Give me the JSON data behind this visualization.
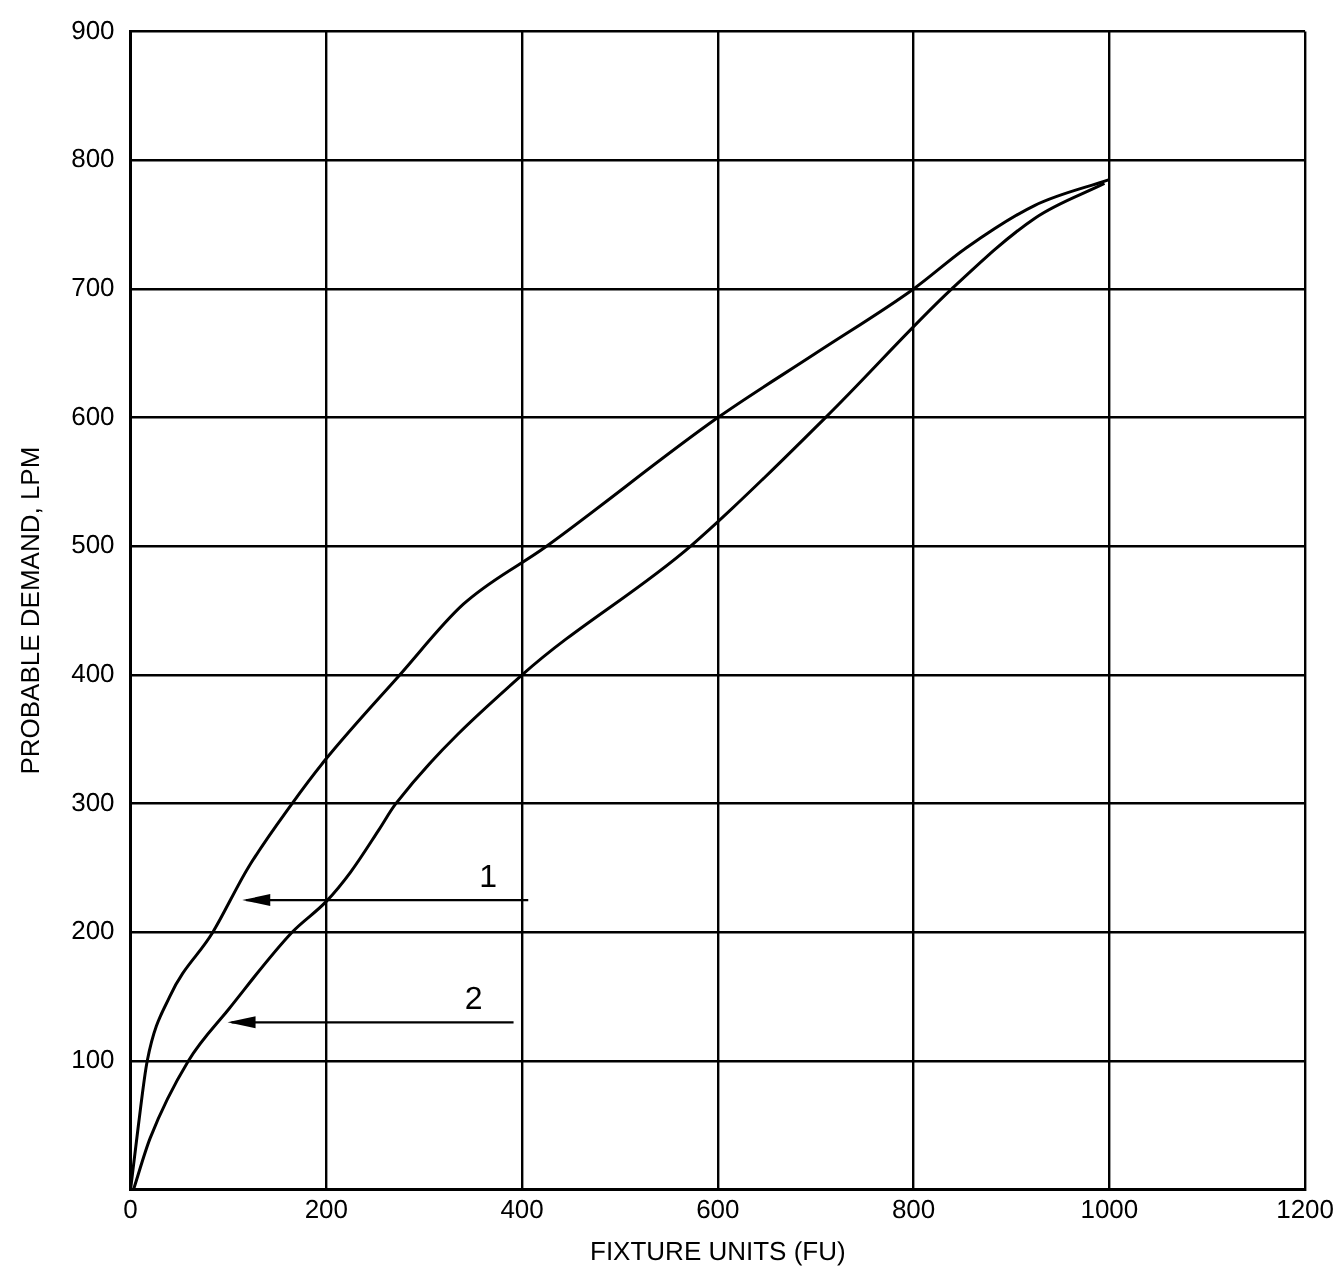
{
  "chart_data": {
    "type": "line",
    "xlabel": "FIXTURE UNITS (FU)",
    "ylabel": "PROBABLE DEMAND, LPM",
    "xlim": [
      0,
      1200
    ],
    "xticks": [
      0,
      200,
      400,
      600,
      800,
      1000,
      1200
    ],
    "ylim": [
      0,
      900
    ],
    "yticks": [
      {
        "value": 0,
        "label": null
      },
      100,
      200,
      300,
      400,
      500,
      600,
      700,
      800,
      900
    ],
    "grid": true,
    "legend": false,
    "marker": "none",
    "line_style": "solid",
    "series": [
      {
        "color": "#000000",
        "x": [
          0,
          8,
          17,
          40,
          84,
          120,
          165,
          200,
          275,
          340,
          425,
          600,
          700,
          800,
          854,
          924,
          1000
        ],
        "values": [
          0,
          50,
          100,
          150,
          200,
          250,
          300,
          335,
          400,
          455,
          500,
          600,
          650,
          700,
          732,
          765,
          785
        ]
      },
      {
        "color": "#000000",
        "x": [
          3,
          20,
          59,
          100,
          165,
          200,
          225,
          254,
          271,
          400,
          572,
          710,
          839,
          924,
          995
        ],
        "values": [
          0,
          40,
          100,
          140,
          200,
          224,
          247,
          280,
          300,
          400,
          500,
          600,
          700,
          755,
          782
        ]
      }
    ],
    "annotations": [
      {
        "text": "1",
        "x": 110,
        "y": 225
      },
      {
        "text": "2",
        "x": 95,
        "y": 130
      }
    ]
  }
}
